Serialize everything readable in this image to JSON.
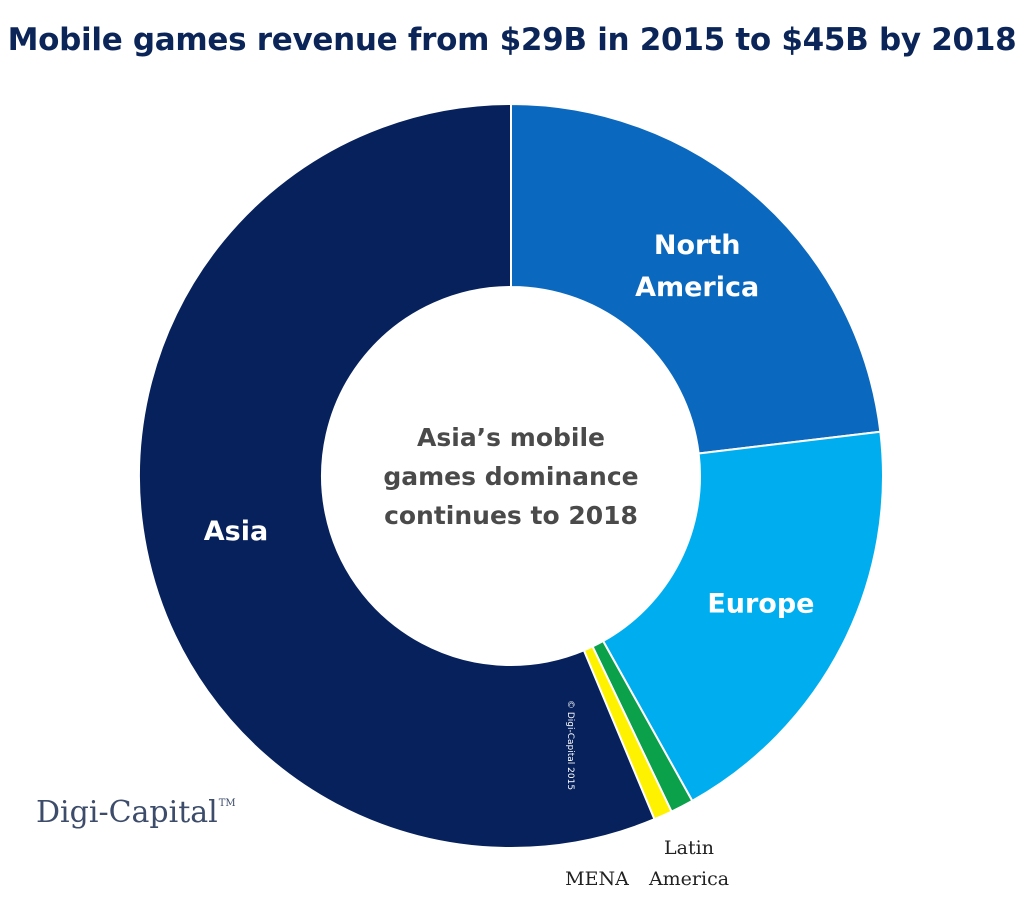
{
  "chart_data": {
    "type": "pie",
    "title": "Mobile games revenue from $29B in 2015 to $45B by 2018",
    "center_text": [
      "Asia’s mobile",
      "games dominance",
      "continues to 2018"
    ],
    "slices": [
      {
        "name": "North America",
        "label_lines": [
          "North",
          "America"
        ],
        "value": 23.1,
        "color": "#0a69be",
        "label_inside": true
      },
      {
        "name": "Europe",
        "label_lines": [
          "Europe"
        ],
        "value": 18.8,
        "color": "#00aeef",
        "label_inside": true
      },
      {
        "name": "Latin America",
        "label_lines": [
          "Latin",
          "America"
        ],
        "value": 1.0,
        "color": "#0ba14b",
        "label_inside": false
      },
      {
        "name": "MENA",
        "label_lines": [
          "MENA"
        ],
        "value": 0.8,
        "color": "#fff200",
        "label_inside": false
      },
      {
        "name": "Asia",
        "label_lines": [
          "Asia"
        ],
        "value": 56.3,
        "color": "#06215c",
        "label_inside": true
      }
    ],
    "copyright": "© Digi-Capital 2015",
    "brand": "Digi-Capital",
    "brand_mark": "TM"
  }
}
